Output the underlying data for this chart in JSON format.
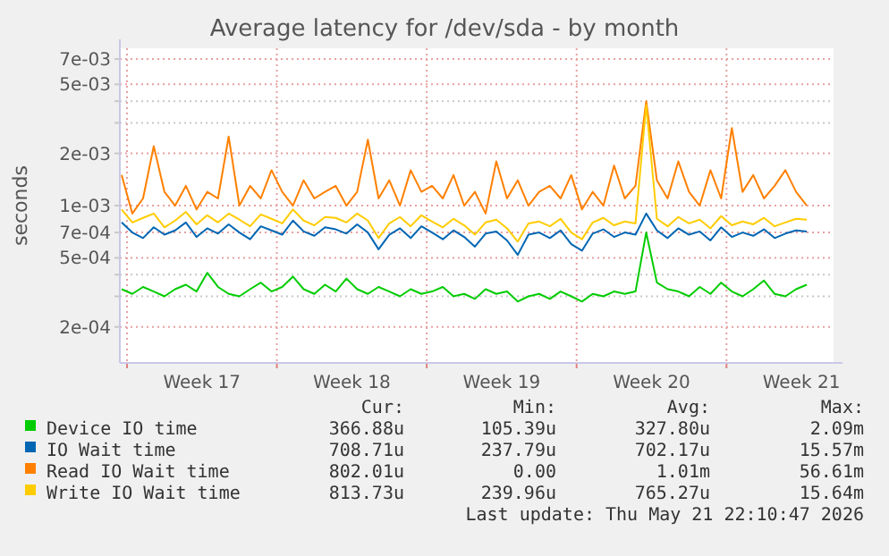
{
  "chart_data": {
    "type": "line",
    "title": "Average latency for /dev/sda - by month",
    "ylabel": "seconds",
    "log": "y",
    "grid": true,
    "legend": "bottom",
    "marker": "none",
    "line_style": "solid",
    "xlim": [
      "2026-04-19T16:00",
      "2026-05-23T00:00"
    ],
    "xticks": [
      {
        "value": "2026-04-20T00:00",
        "label": null
      },
      {
        "value": "2026-04-23T12:00",
        "label": "Week 17"
      },
      {
        "value": "2026-04-27T00:00",
        "label": null
      },
      {
        "value": "2026-04-30T12:00",
        "label": "Week 18"
      },
      {
        "value": "2026-05-04T00:00",
        "label": null
      },
      {
        "value": "2026-05-07T12:00",
        "label": "Week 19"
      },
      {
        "value": "2026-05-11T00:00",
        "label": null
      },
      {
        "value": "2026-05-14T12:00",
        "label": "Week 20"
      },
      {
        "value": "2026-05-18T00:00",
        "label": null
      },
      {
        "value": "2026-05-21T12:00",
        "label": "Week 21"
      }
    ],
    "ylim": [
      0.000124,
      0.00807
    ],
    "yticks": [
      {
        "value": 0.0002,
        "label": "2e-04"
      },
      {
        "value": 0.0003,
        "label": null
      },
      {
        "value": 0.0004,
        "label": null
      },
      {
        "value": 0.0005,
        "label": "5e-04"
      },
      {
        "value": 0.0007,
        "label": "7e-04"
      },
      {
        "value": 0.001,
        "label": "1e-03"
      },
      {
        "value": 0.002,
        "label": "2e-03"
      },
      {
        "value": 0.003,
        "label": null
      },
      {
        "value": 0.004,
        "label": null
      },
      {
        "value": 0.005,
        "label": "5e-03"
      },
      {
        "value": 0.007,
        "label": "7e-03"
      }
    ],
    "x": [
      "2026-04-19T18:00",
      "2026-04-20T06:00",
      "2026-04-20T18:00",
      "2026-04-21T06:00",
      "2026-04-21T18:00",
      "2026-04-22T06:00",
      "2026-04-22T18:00",
      "2026-04-23T06:00",
      "2026-04-23T18:00",
      "2026-04-24T06:00",
      "2026-04-24T18:00",
      "2026-04-25T06:00",
      "2026-04-25T18:00",
      "2026-04-26T06:00",
      "2026-04-26T18:00",
      "2026-04-27T06:00",
      "2026-04-27T18:00",
      "2026-04-28T06:00",
      "2026-04-28T18:00",
      "2026-04-29T06:00",
      "2026-04-29T18:00",
      "2026-04-30T06:00",
      "2026-04-30T18:00",
      "2026-05-01T06:00",
      "2026-05-01T18:00",
      "2026-05-02T06:00",
      "2026-05-02T18:00",
      "2026-05-03T06:00",
      "2026-05-03T18:00",
      "2026-05-04T06:00",
      "2026-05-04T18:00",
      "2026-05-05T06:00",
      "2026-05-05T18:00",
      "2026-05-06T06:00",
      "2026-05-06T18:00",
      "2026-05-07T06:00",
      "2026-05-07T18:00",
      "2026-05-08T06:00",
      "2026-05-08T18:00",
      "2026-05-09T06:00",
      "2026-05-09T18:00",
      "2026-05-10T06:00",
      "2026-05-10T18:00",
      "2026-05-11T06:00",
      "2026-05-11T18:00",
      "2026-05-12T06:00",
      "2026-05-12T18:00",
      "2026-05-13T06:00",
      "2026-05-13T18:00",
      "2026-05-14T06:00",
      "2026-05-14T18:00",
      "2026-05-15T06:00",
      "2026-05-15T18:00",
      "2026-05-16T06:00",
      "2026-05-16T18:00",
      "2026-05-17T06:00",
      "2026-05-17T18:00",
      "2026-05-18T06:00",
      "2026-05-18T18:00",
      "2026-05-19T06:00",
      "2026-05-19T18:00",
      "2026-05-20T06:00",
      "2026-05-20T18:00",
      "2026-05-21T06:00",
      "2026-05-21T18:00"
    ],
    "series": [
      {
        "name": "Device IO time",
        "color": "#00cc00",
        "values": [
          0.00033,
          0.00031,
          0.00034,
          0.00032,
          0.0003,
          0.00033,
          0.00035,
          0.00032,
          0.00041,
          0.00034,
          0.00031,
          0.0003,
          0.00033,
          0.00036,
          0.00032,
          0.00034,
          0.00039,
          0.00033,
          0.00031,
          0.00035,
          0.00032,
          0.00038,
          0.00033,
          0.00031,
          0.00034,
          0.00032,
          0.0003,
          0.00033,
          0.00031,
          0.00032,
          0.00034,
          0.0003,
          0.00031,
          0.00029,
          0.00033,
          0.00031,
          0.00032,
          0.00028,
          0.0003,
          0.00031,
          0.00029,
          0.00032,
          0.0003,
          0.00028,
          0.00031,
          0.0003,
          0.00032,
          0.00031,
          0.00032,
          0.0007,
          0.00036,
          0.00033,
          0.00032,
          0.0003,
          0.00034,
          0.00031,
          0.00036,
          0.00032,
          0.0003,
          0.00033,
          0.00037,
          0.00031,
          0.0003,
          0.00033,
          0.00035
        ]
      },
      {
        "name": "IO Wait time",
        "color": "#0066b3",
        "values": [
          0.0008,
          0.0007,
          0.00065,
          0.00075,
          0.00068,
          0.00072,
          0.0008,
          0.00066,
          0.00074,
          0.00069,
          0.00078,
          0.0007,
          0.00064,
          0.00076,
          0.00072,
          0.00068,
          0.00082,
          0.00071,
          0.00067,
          0.00075,
          0.00073,
          0.00069,
          0.00078,
          0.0007,
          0.00056,
          0.00068,
          0.00074,
          0.00065,
          0.00076,
          0.0007,
          0.00064,
          0.00072,
          0.00066,
          0.00058,
          0.00069,
          0.00071,
          0.00063,
          0.00052,
          0.00068,
          0.0007,
          0.00065,
          0.00072,
          0.0006,
          0.00055,
          0.00069,
          0.00073,
          0.00066,
          0.0007,
          0.00068,
          0.0009,
          0.00072,
          0.00065,
          0.00074,
          0.00068,
          0.00071,
          0.00063,
          0.00075,
          0.00066,
          0.0007,
          0.00067,
          0.00073,
          0.00065,
          0.00069,
          0.00072,
          0.00071
        ]
      },
      {
        "name": "Read IO Wait time",
        "color": "#ff8000",
        "values": [
          0.0015,
          0.0009,
          0.0011,
          0.0022,
          0.0012,
          0.001,
          0.0013,
          0.00095,
          0.0012,
          0.0011,
          0.0025,
          0.001,
          0.0013,
          0.0011,
          0.0016,
          0.0012,
          0.001,
          0.0014,
          0.0011,
          0.0012,
          0.0013,
          0.001,
          0.0012,
          0.0024,
          0.0011,
          0.0014,
          0.001,
          0.0016,
          0.0012,
          0.0013,
          0.0011,
          0.0015,
          0.001,
          0.0012,
          0.0009,
          0.0018,
          0.0011,
          0.0014,
          0.001,
          0.0012,
          0.0013,
          0.0011,
          0.0015,
          0.00095,
          0.0012,
          0.001,
          0.0017,
          0.0011,
          0.0013,
          0.004,
          0.0014,
          0.0011,
          0.0018,
          0.0012,
          0.001,
          0.0016,
          0.0011,
          0.0028,
          0.0012,
          0.0015,
          0.0011,
          0.0013,
          0.0016,
          0.0012,
          0.001
        ]
      },
      {
        "name": "Write IO Wait time",
        "color": "#ffcc00",
        "values": [
          0.00095,
          0.0008,
          0.00085,
          0.0009,
          0.00075,
          0.00082,
          0.00092,
          0.00078,
          0.00088,
          0.0008,
          0.0009,
          0.00083,
          0.00076,
          0.00089,
          0.00084,
          0.00079,
          0.00095,
          0.00082,
          0.00077,
          0.00086,
          0.00085,
          0.0008,
          0.0009,
          0.00082,
          0.00065,
          0.00079,
          0.00086,
          0.00076,
          0.00088,
          0.00081,
          0.00075,
          0.00084,
          0.00077,
          0.00068,
          0.0008,
          0.00083,
          0.00074,
          0.00062,
          0.00079,
          0.00081,
          0.00076,
          0.00084,
          0.0007,
          0.00064,
          0.0008,
          0.00085,
          0.00077,
          0.00081,
          0.00079,
          0.0038,
          0.00084,
          0.00076,
          0.00086,
          0.00079,
          0.00083,
          0.00074,
          0.00087,
          0.00077,
          0.00081,
          0.00078,
          0.00085,
          0.00076,
          0.0008,
          0.00084,
          0.00083
        ]
      }
    ],
    "annotations": [
      "Cur:",
      "Min:",
      "Avg:",
      "Max:",
      "366.88u",
      "105.39u",
      "327.80u",
      "2.09m",
      "708.71u",
      "237.79u",
      "702.17u",
      "15.57m",
      "802.01u",
      "0.00",
      "1.01m",
      "56.61m",
      "813.73u",
      "239.96u",
      "765.27u",
      "15.64m",
      "Last update: Thu May 21 22:10:47 2026"
    ]
  }
}
